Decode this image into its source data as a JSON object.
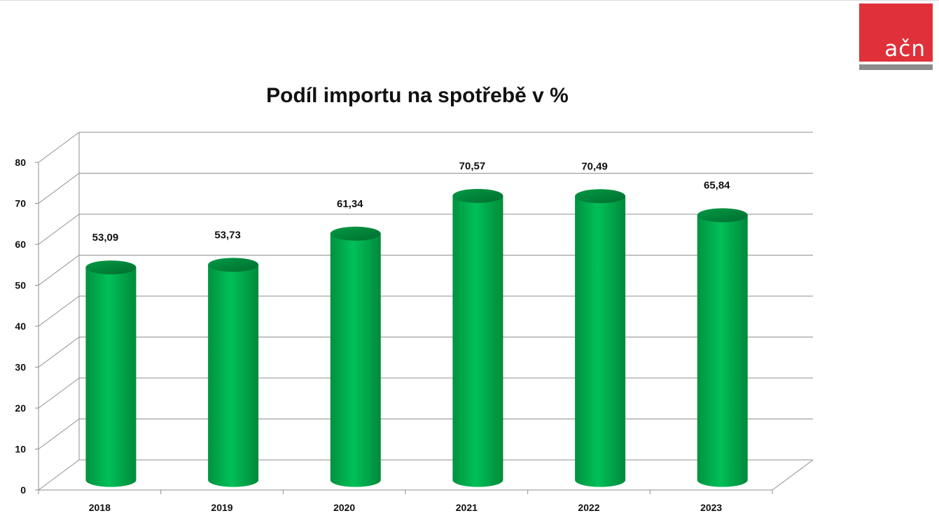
{
  "logo": {
    "text": "ačn",
    "color": "#e0313a",
    "bar_color": "#8c8c8c"
  },
  "chart_data": {
    "type": "bar",
    "style": "3d-cylinder",
    "title": "Podíl importu na spotřebě v %",
    "xlabel": "",
    "ylabel": "",
    "categories": [
      "2018",
      "2019",
      "2020",
      "2021",
      "2022",
      "2023"
    ],
    "values": [
      53.09,
      53.73,
      61.34,
      70.57,
      70.49,
      65.84
    ],
    "value_labels": [
      "53,09",
      "53,73",
      "61,34",
      "70,57",
      "70,49",
      "65,84"
    ],
    "ylim": [
      0,
      80
    ],
    "y_ticks": [
      0,
      10,
      20,
      30,
      40,
      50,
      60,
      70,
      80
    ],
    "grid": true,
    "legend": "none",
    "bar_color": "#00b050",
    "bar_dark_color": "#007a36"
  }
}
